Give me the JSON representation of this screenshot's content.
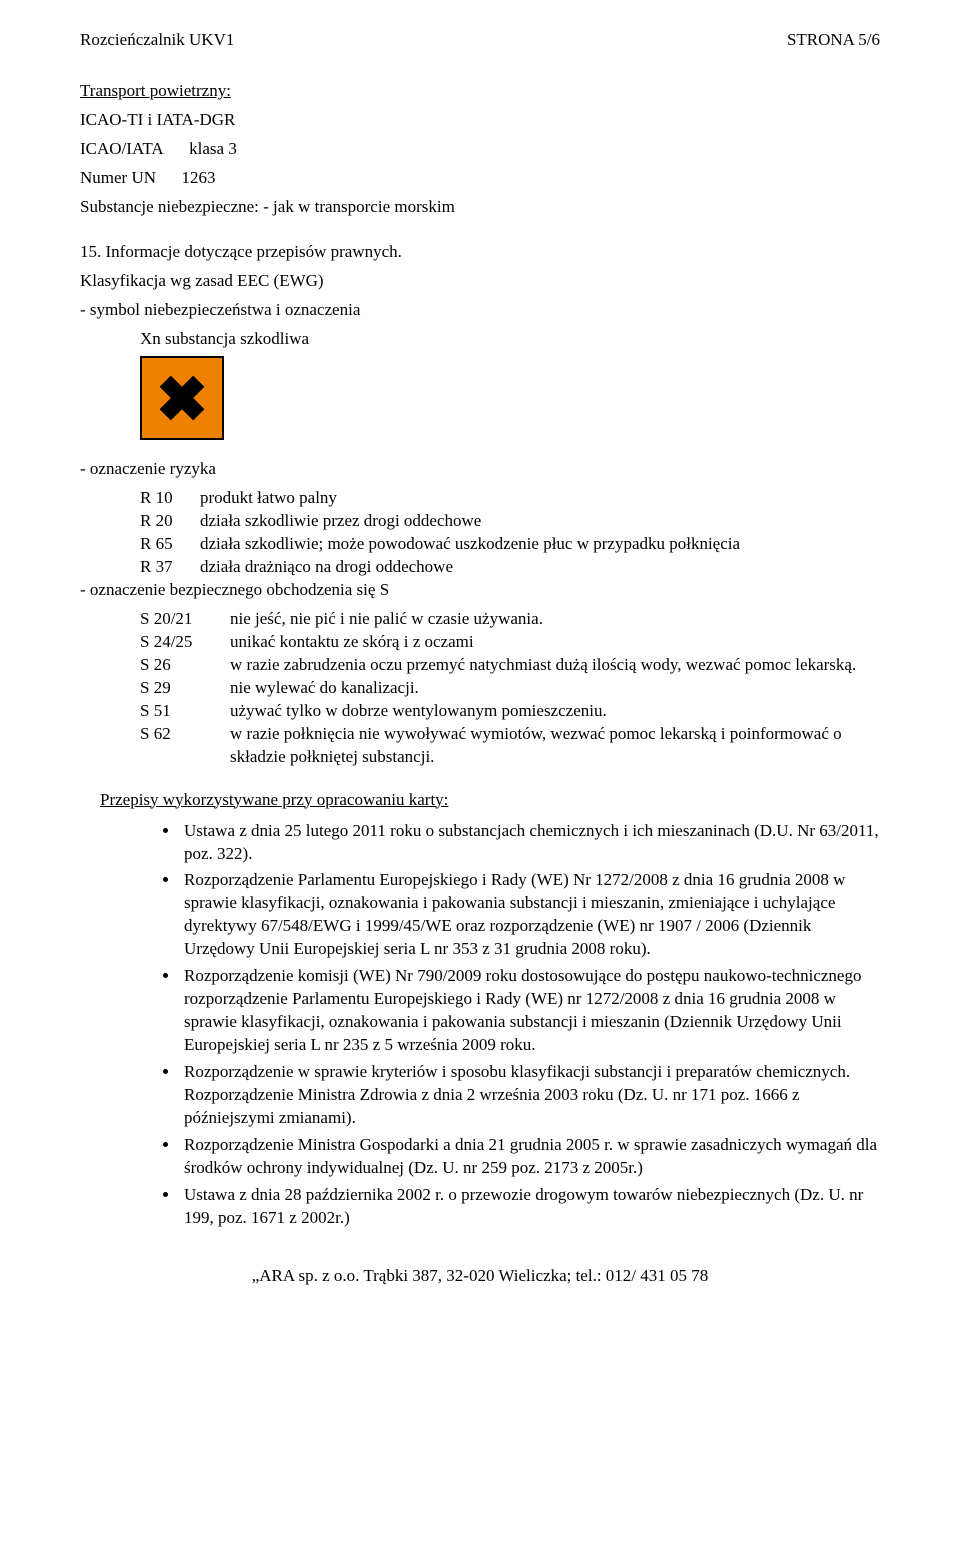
{
  "header": {
    "title_left": "Rozcieńczalnik UKV1",
    "title_right": "STRONA 5/6"
  },
  "transport": {
    "heading": "Transport powietrzny:",
    "line1": "ICAO-TI  i  IATA-DGR",
    "line2_label": "ICAO/IATA",
    "line2_value": "klasa 3",
    "line3_label": "Numer UN",
    "line3_value": "1263",
    "line4": "Substancje niebezpieczne: - jak w transporcie morskim"
  },
  "sec15": {
    "heading": "15. Informacje dotyczące przepisów prawnych.",
    "classif_line1": "Klasyfikacja wg zasad EEC (EWG)",
    "classif_line2": "-  symbol niebezpieczeństwa i oznaczenia",
    "classif_line3": "Xn  substancja  szkodliwa",
    "risk_heading": "- oznaczenie ryzyka",
    "r_rows": [
      {
        "code": "R 10",
        "text": "produkt łatwo palny"
      },
      {
        "code": "R 20",
        "text": "działa szkodliwie przez drogi oddechowe"
      },
      {
        "code": "R 65",
        "text": "działa szkodliwie; może powodować uszkodzenie płuc w przypadku połknięcia"
      },
      {
        "code": "R 37",
        "text": "działa drażniąco na drogi oddechowe"
      }
    ],
    "safe_heading": "- oznaczenie bezpiecznego obchodzenia się S",
    "s_rows": [
      {
        "code": "S 20/21",
        "text": "nie jeść, nie pić i nie palić  w czasie używania."
      },
      {
        "code": "S 24/25",
        "text": "unikać kontaktu ze skórą i z oczami"
      },
      {
        "code": "S 26",
        "text": "w razie zabrudzenia oczu przemyć natychmiast dużą ilością wody, wezwać pomoc lekarską."
      },
      {
        "code": "S 29",
        "text": "nie wylewać do kanalizacji."
      },
      {
        "code": "S 51",
        "text": "używać tylko w dobrze wentylowanym pomieszczeniu."
      },
      {
        "code": "S 62",
        "text": "w razie połknięcia nie wywoływać wymiotów, wezwać pomoc lekarską i poinformować o składzie połkniętej substancji."
      }
    ],
    "przepisy_heading": "Przepisy wykorzystywane przy opracowaniu karty:",
    "bullets": [
      "Ustawa z dnia 25 lutego 2011 roku o substancjach chemicznych i ich mieszaninach (D.U. Nr 63/2011, poz. 322).",
      "Rozporządzenie Parlamentu Europejskiego i Rady (WE) Nr 1272/2008 z dnia 16 grudnia 2008 w sprawie klasyfikacji, oznakowania i pakowania substancji i mieszanin, zmieniające i uchylające dyrektywy 67/548/EWG i 1999/45/WE oraz rozporządzenie (WE) nr 1907 / 2006 (Dziennik Urzędowy Unii Europejskiej seria L nr 353 z 31 grudnia 2008 roku).",
      "Rozporządzenie komisji (WE) Nr 790/2009 roku dostosowujące do postępu naukowo-technicznego rozporządzenie Parlamentu Europejskiego i Rady (WE) nr 1272/2008 z dnia 16 grudnia 2008 w sprawie klasyfikacji, oznakowania i pakowania substancji i mieszanin (Dziennik Urzędowy Unii Europejskiej seria L nr 235 z 5 września 2009 roku.",
      " Rozporządzenie w sprawie kryteriów i sposobu klasyfikacji substancji i preparatów chemicznych. Rozporządzenie Ministra Zdrowia z dnia 2 września 2003 roku (Dz. U. nr 171 poz. 1666 z późniejszymi zmianami).",
      "Rozporządzenie Ministra Gospodarki a dnia 21 grudnia 2005 r. w sprawie zasadniczych wymagań dla środków ochrony indywidualnej (Dz. U. nr 259 poz. 2173 z 2005r.)",
      "Ustawa z dnia 28 października 2002 r. o przewozie drogowym towarów niebezpiecznych (Dz. U. nr 199, poz. 1671 z 2002r.)"
    ]
  },
  "footer": "„ARA sp. z o.o. Trąbki 387, 32-020 Wieliczka; tel.: 012/ 431 05 78",
  "hazard_symbol": {
    "bg_color": "#f08000",
    "border_color": "#000000",
    "cross_color": "#000000"
  }
}
